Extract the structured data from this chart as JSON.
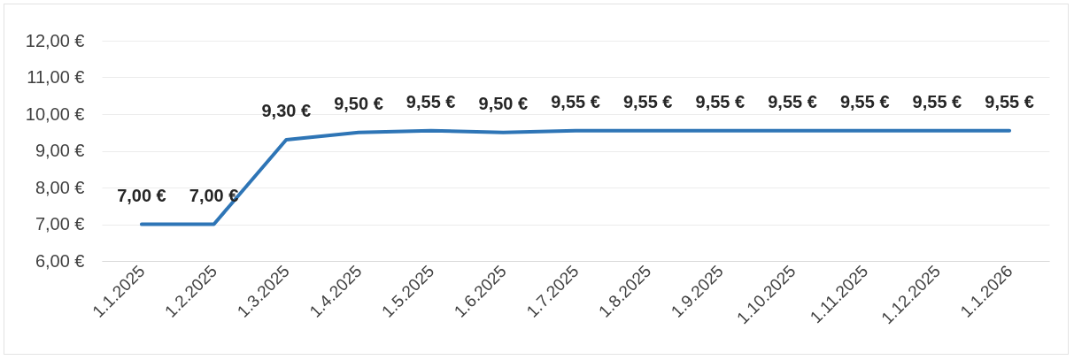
{
  "chart_data": {
    "type": "line",
    "categories": [
      "1.1.2025",
      "1.2.2025",
      "1.3.2025",
      "1.4.2025",
      "1.5.2025",
      "1.6.2025",
      "1.7.2025",
      "1.8.2025",
      "1.9.2025",
      "1.10.2025",
      "1.11.2025",
      "1.12.2025",
      "1.1.2026"
    ],
    "values": [
      7.0,
      7.0,
      9.3,
      9.5,
      9.55,
      9.5,
      9.55,
      9.55,
      9.55,
      9.55,
      9.55,
      9.55,
      9.55
    ],
    "value_labels": [
      "7,00 €",
      "7,00 €",
      "9,30 €",
      "9,50 €",
      "9,55 €",
      "9,50 €",
      "9,55 €",
      "9,55 €",
      "9,55 €",
      "9,55 €",
      "9,55 €",
      "9,55 €",
      "9,55 €"
    ],
    "color": "#2e75b6",
    "ylim": [
      6,
      12
    ],
    "yticks": [
      {
        "value": 6,
        "label": "6,00 €"
      },
      {
        "value": 7,
        "label": "7,00 €"
      },
      {
        "value": 8,
        "label": "8,00 €"
      },
      {
        "value": 9,
        "label": "9,00 €"
      },
      {
        "value": 10,
        "label": "10,00 €"
      },
      {
        "value": 11,
        "label": "11,00 €"
      },
      {
        "value": 12,
        "label": "12,00 €"
      }
    ],
    "grid": "y"
  }
}
